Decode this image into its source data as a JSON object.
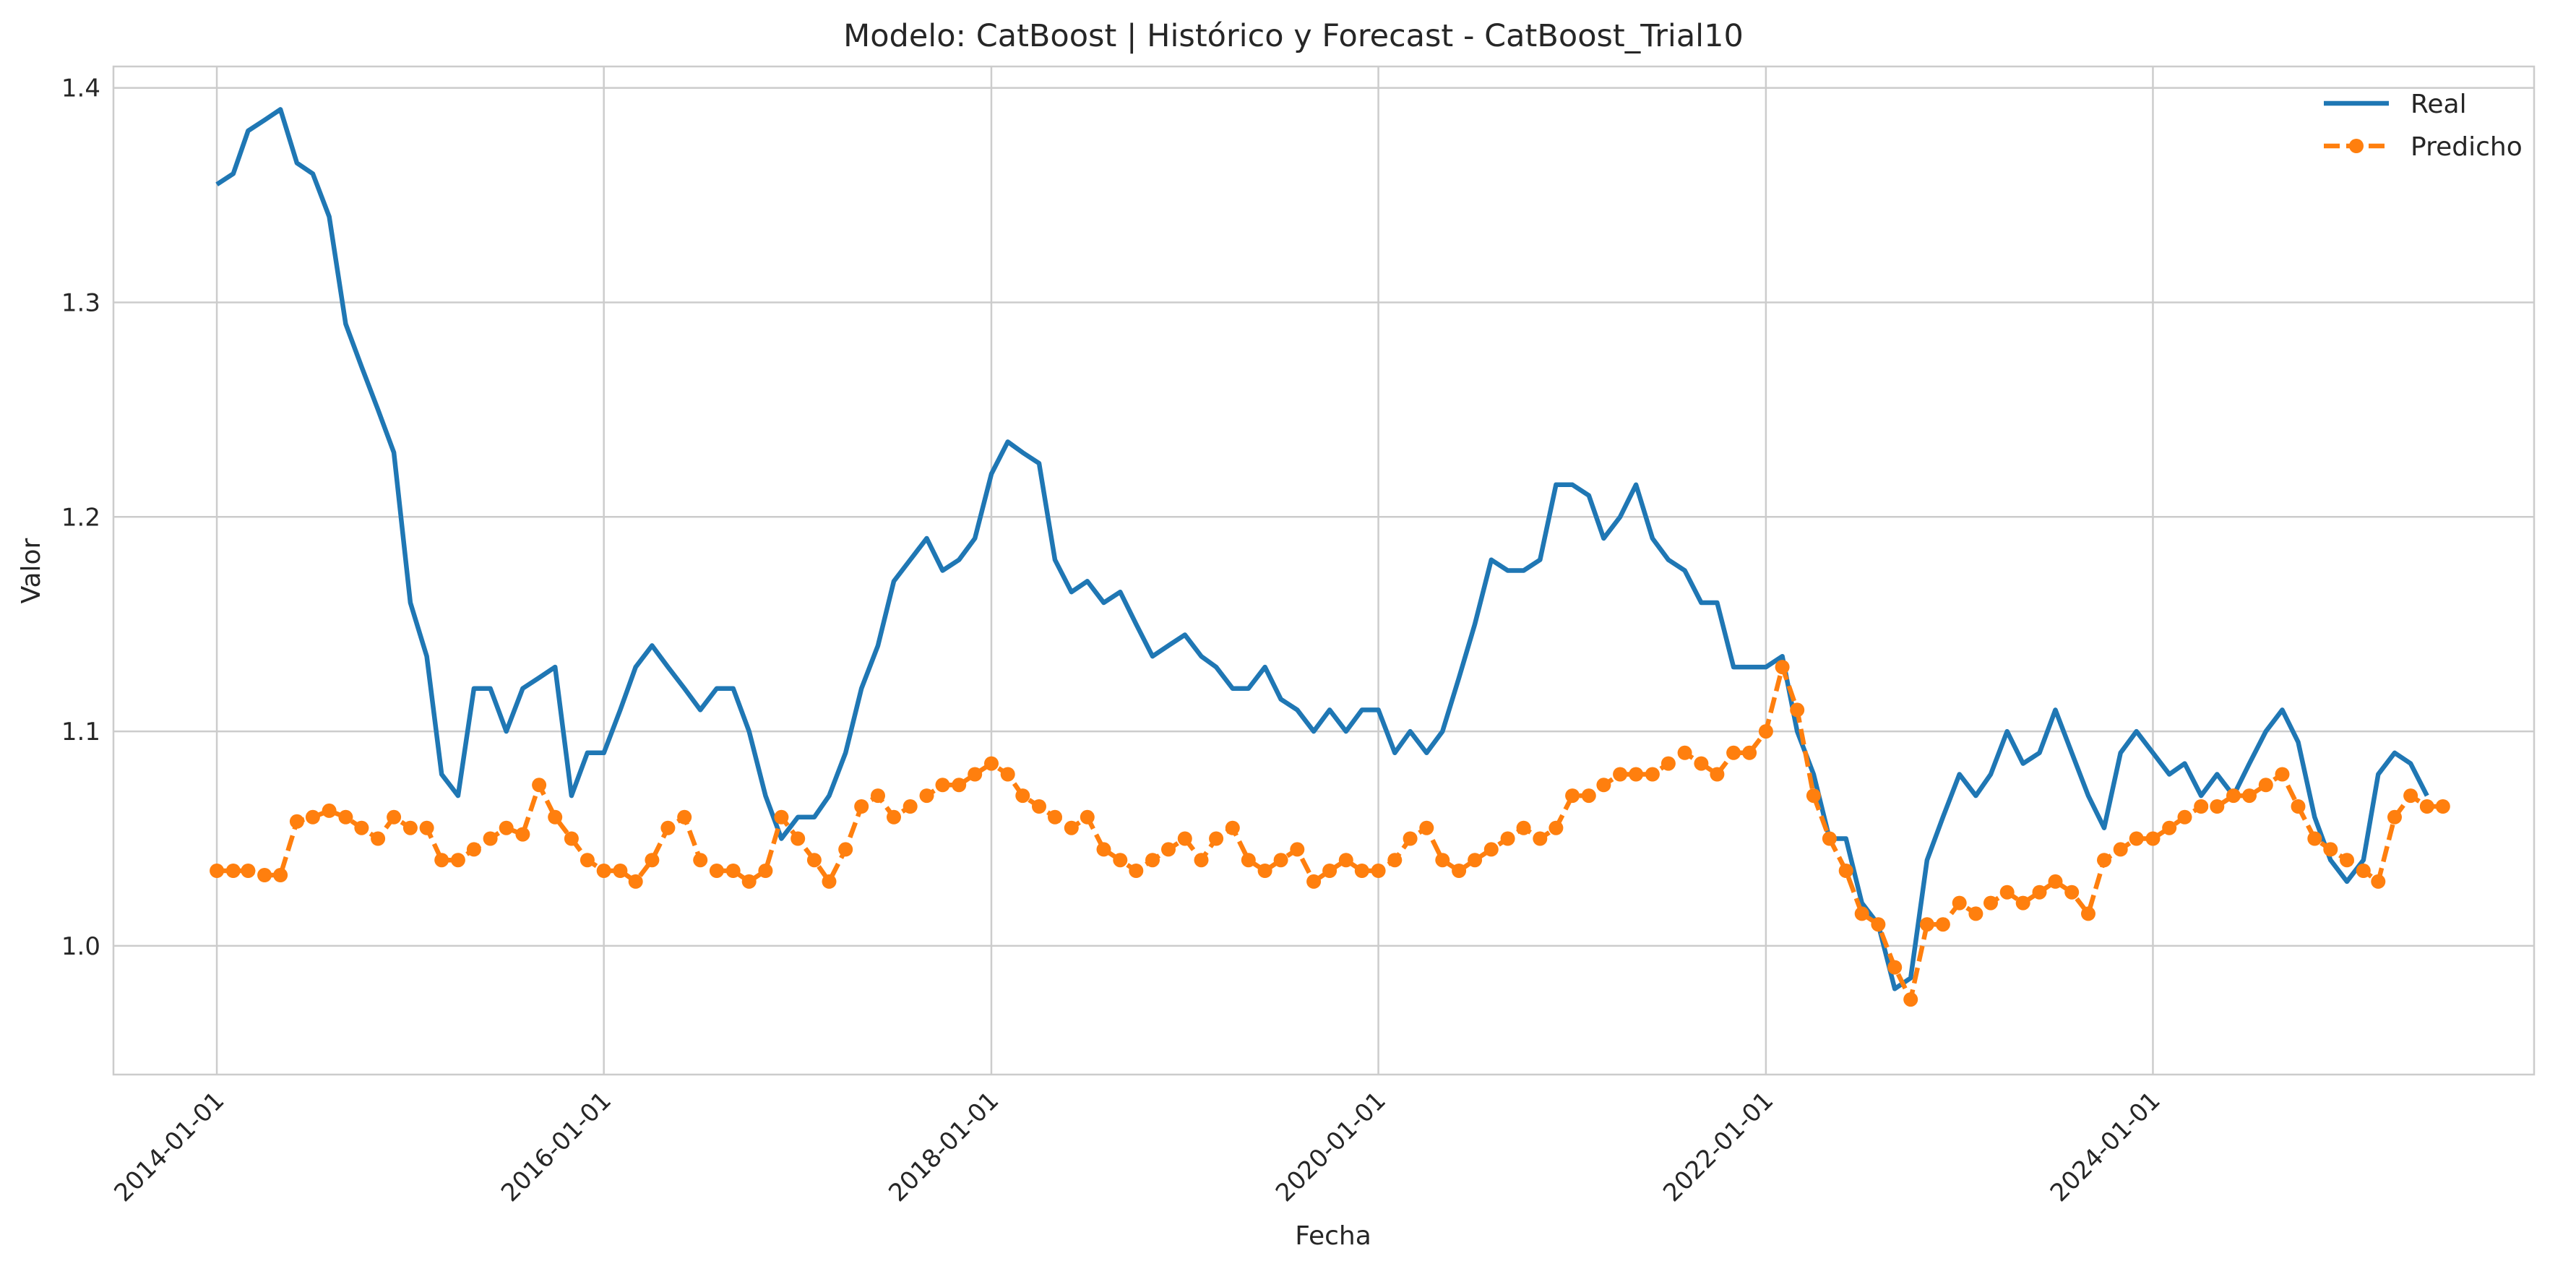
{
  "chart_data": {
    "type": "line",
    "title": "Modelo: CatBoost | Histórico y Forecast - CatBoost_Trial10",
    "xlabel": "Fecha",
    "ylabel": "Valor",
    "x_ticks": [
      "2014-01-01",
      "2016-01-01",
      "2018-01-01",
      "2020-01-01",
      "2022-01-01",
      "2024-01-01"
    ],
    "y_ticks": [
      "1.0",
      "1.1",
      "1.2",
      "1.3",
      "1.4"
    ],
    "xlim": [
      "2013-06-20",
      "2025-12-20"
    ],
    "ylim": [
      0.94,
      1.41
    ],
    "grid": true,
    "legend_position": "top-right",
    "colors": {
      "real": "#1f77b4",
      "predicho": "#ff7f0e",
      "grid": "#cccccc",
      "spine": "#cccccc"
    },
    "series": [
      {
        "name": "Real",
        "style": "solid",
        "points": [
          [
            "2014-01-01",
            1.355
          ],
          [
            "2014-02-01",
            1.36
          ],
          [
            "2014-03-01",
            1.38
          ],
          [
            "2014-04-01",
            1.385
          ],
          [
            "2014-05-01",
            1.39
          ],
          [
            "2014-06-01",
            1.365
          ],
          [
            "2014-07-01",
            1.36
          ],
          [
            "2014-08-01",
            1.34
          ],
          [
            "2014-09-01",
            1.29
          ],
          [
            "2014-10-01",
            1.27
          ],
          [
            "2014-11-01",
            1.25
          ],
          [
            "2014-12-01",
            1.23
          ],
          [
            "2015-01-01",
            1.16
          ],
          [
            "2015-02-01",
            1.135
          ],
          [
            "2015-03-01",
            1.08
          ],
          [
            "2015-04-01",
            1.07
          ],
          [
            "2015-05-01",
            1.12
          ],
          [
            "2015-06-01",
            1.12
          ],
          [
            "2015-07-01",
            1.1
          ],
          [
            "2015-08-01",
            1.12
          ],
          [
            "2015-09-01",
            1.125
          ],
          [
            "2015-10-01",
            1.13
          ],
          [
            "2015-11-01",
            1.07
          ],
          [
            "2015-12-01",
            1.09
          ],
          [
            "2016-01-01",
            1.09
          ],
          [
            "2016-02-01",
            1.11
          ],
          [
            "2016-03-01",
            1.13
          ],
          [
            "2016-04-01",
            1.14
          ],
          [
            "2016-05-01",
            1.13
          ],
          [
            "2016-06-01",
            1.12
          ],
          [
            "2016-07-01",
            1.11
          ],
          [
            "2016-08-01",
            1.12
          ],
          [
            "2016-09-01",
            1.12
          ],
          [
            "2016-10-01",
            1.1
          ],
          [
            "2016-11-01",
            1.07
          ],
          [
            "2016-12-01",
            1.05
          ],
          [
            "2017-01-01",
            1.06
          ],
          [
            "2017-02-01",
            1.06
          ],
          [
            "2017-03-01",
            1.07
          ],
          [
            "2017-04-01",
            1.09
          ],
          [
            "2017-05-01",
            1.12
          ],
          [
            "2017-06-01",
            1.14
          ],
          [
            "2017-07-01",
            1.17
          ],
          [
            "2017-08-01",
            1.18
          ],
          [
            "2017-09-01",
            1.19
          ],
          [
            "2017-10-01",
            1.175
          ],
          [
            "2017-11-01",
            1.18
          ],
          [
            "2017-12-01",
            1.19
          ],
          [
            "2018-01-01",
            1.22
          ],
          [
            "2018-02-01",
            1.235
          ],
          [
            "2018-03-01",
            1.23
          ],
          [
            "2018-04-01",
            1.225
          ],
          [
            "2018-05-01",
            1.18
          ],
          [
            "2018-06-01",
            1.165
          ],
          [
            "2018-07-01",
            1.17
          ],
          [
            "2018-08-01",
            1.16
          ],
          [
            "2018-09-01",
            1.165
          ],
          [
            "2018-10-01",
            1.15
          ],
          [
            "2018-11-01",
            1.135
          ],
          [
            "2018-12-01",
            1.14
          ],
          [
            "2019-01-01",
            1.145
          ],
          [
            "2019-02-01",
            1.135
          ],
          [
            "2019-03-01",
            1.13
          ],
          [
            "2019-04-01",
            1.12
          ],
          [
            "2019-05-01",
            1.12
          ],
          [
            "2019-06-01",
            1.13
          ],
          [
            "2019-07-01",
            1.115
          ],
          [
            "2019-08-01",
            1.11
          ],
          [
            "2019-09-01",
            1.1
          ],
          [
            "2019-10-01",
            1.11
          ],
          [
            "2019-11-01",
            1.1
          ],
          [
            "2019-12-01",
            1.11
          ],
          [
            "2020-01-01",
            1.11
          ],
          [
            "2020-02-01",
            1.09
          ],
          [
            "2020-03-01",
            1.1
          ],
          [
            "2020-04-01",
            1.09
          ],
          [
            "2020-05-01",
            1.1
          ],
          [
            "2020-06-01",
            1.125
          ],
          [
            "2020-07-01",
            1.15
          ],
          [
            "2020-08-01",
            1.18
          ],
          [
            "2020-09-01",
            1.175
          ],
          [
            "2020-10-01",
            1.175
          ],
          [
            "2020-11-01",
            1.18
          ],
          [
            "2020-12-01",
            1.215
          ],
          [
            "2021-01-01",
            1.215
          ],
          [
            "2021-02-01",
            1.21
          ],
          [
            "2021-03-01",
            1.19
          ],
          [
            "2021-04-01",
            1.2
          ],
          [
            "2021-05-01",
            1.215
          ],
          [
            "2021-06-01",
            1.19
          ],
          [
            "2021-07-01",
            1.18
          ],
          [
            "2021-08-01",
            1.175
          ],
          [
            "2021-09-01",
            1.16
          ],
          [
            "2021-10-01",
            1.16
          ],
          [
            "2021-11-01",
            1.13
          ],
          [
            "2021-12-01",
            1.13
          ],
          [
            "2022-01-01",
            1.13
          ],
          [
            "2022-02-01",
            1.135
          ],
          [
            "2022-03-01",
            1.1
          ],
          [
            "2022-04-01",
            1.08
          ],
          [
            "2022-05-01",
            1.05
          ],
          [
            "2022-06-01",
            1.05
          ],
          [
            "2022-07-01",
            1.02
          ],
          [
            "2022-08-01",
            1.01
          ],
          [
            "2022-09-01",
            0.98
          ],
          [
            "2022-10-01",
            0.985
          ],
          [
            "2022-11-01",
            1.04
          ],
          [
            "2022-12-01",
            1.06
          ],
          [
            "2023-01-01",
            1.08
          ],
          [
            "2023-02-01",
            1.07
          ],
          [
            "2023-03-01",
            1.08
          ],
          [
            "2023-04-01",
            1.1
          ],
          [
            "2023-05-01",
            1.085
          ],
          [
            "2023-06-01",
            1.09
          ],
          [
            "2023-07-01",
            1.11
          ],
          [
            "2023-08-01",
            1.09
          ],
          [
            "2023-09-01",
            1.07
          ],
          [
            "2023-10-01",
            1.055
          ],
          [
            "2023-11-01",
            1.09
          ],
          [
            "2023-12-01",
            1.1
          ],
          [
            "2024-01-01",
            1.09
          ],
          [
            "2024-02-01",
            1.08
          ],
          [
            "2024-03-01",
            1.085
          ],
          [
            "2024-04-01",
            1.07
          ],
          [
            "2024-05-01",
            1.08
          ],
          [
            "2024-06-01",
            1.07
          ],
          [
            "2024-07-01",
            1.085
          ],
          [
            "2024-08-01",
            1.1
          ],
          [
            "2024-09-01",
            1.11
          ],
          [
            "2024-10-01",
            1.095
          ],
          [
            "2024-11-01",
            1.06
          ],
          [
            "2024-12-01",
            1.04
          ],
          [
            "2025-01-01",
            1.03
          ],
          [
            "2025-02-01",
            1.04
          ],
          [
            "2025-03-01",
            1.08
          ],
          [
            "2025-04-01",
            1.09
          ],
          [
            "2025-05-01",
            1.085
          ],
          [
            "2025-06-01",
            1.07
          ]
        ]
      },
      {
        "name": "Predicho",
        "style": "dashed-markers",
        "points": [
          [
            "2014-01-01",
            1.035
          ],
          [
            "2014-02-01",
            1.035
          ],
          [
            "2014-03-01",
            1.035
          ],
          [
            "2014-04-01",
            1.033
          ],
          [
            "2014-05-01",
            1.033
          ],
          [
            "2014-06-01",
            1.058
          ],
          [
            "2014-07-01",
            1.06
          ],
          [
            "2014-08-01",
            1.063
          ],
          [
            "2014-09-01",
            1.06
          ],
          [
            "2014-10-01",
            1.055
          ],
          [
            "2014-11-01",
            1.05
          ],
          [
            "2014-12-01",
            1.06
          ],
          [
            "2015-01-01",
            1.055
          ],
          [
            "2015-02-01",
            1.055
          ],
          [
            "2015-03-01",
            1.04
          ],
          [
            "2015-04-01",
            1.04
          ],
          [
            "2015-05-01",
            1.045
          ],
          [
            "2015-06-01",
            1.05
          ],
          [
            "2015-07-01",
            1.055
          ],
          [
            "2015-08-01",
            1.052
          ],
          [
            "2015-09-01",
            1.075
          ],
          [
            "2015-10-01",
            1.06
          ],
          [
            "2015-11-01",
            1.05
          ],
          [
            "2015-12-01",
            1.04
          ],
          [
            "2016-01-01",
            1.035
          ],
          [
            "2016-02-01",
            1.035
          ],
          [
            "2016-03-01",
            1.03
          ],
          [
            "2016-04-01",
            1.04
          ],
          [
            "2016-05-01",
            1.055
          ],
          [
            "2016-06-01",
            1.06
          ],
          [
            "2016-07-01",
            1.04
          ],
          [
            "2016-08-01",
            1.035
          ],
          [
            "2016-09-01",
            1.035
          ],
          [
            "2016-10-01",
            1.03
          ],
          [
            "2016-11-01",
            1.035
          ],
          [
            "2016-12-01",
            1.06
          ],
          [
            "2017-01-01",
            1.05
          ],
          [
            "2017-02-01",
            1.04
          ],
          [
            "2017-03-01",
            1.03
          ],
          [
            "2017-04-01",
            1.045
          ],
          [
            "2017-05-01",
            1.065
          ],
          [
            "2017-06-01",
            1.07
          ],
          [
            "2017-07-01",
            1.06
          ],
          [
            "2017-08-01",
            1.065
          ],
          [
            "2017-09-01",
            1.07
          ],
          [
            "2017-10-01",
            1.075
          ],
          [
            "2017-11-01",
            1.075
          ],
          [
            "2017-12-01",
            1.08
          ],
          [
            "2018-01-01",
            1.085
          ],
          [
            "2018-02-01",
            1.08
          ],
          [
            "2018-03-01",
            1.07
          ],
          [
            "2018-04-01",
            1.065
          ],
          [
            "2018-05-01",
            1.06
          ],
          [
            "2018-06-01",
            1.055
          ],
          [
            "2018-07-01",
            1.06
          ],
          [
            "2018-08-01",
            1.045
          ],
          [
            "2018-09-01",
            1.04
          ],
          [
            "2018-10-01",
            1.035
          ],
          [
            "2018-11-01",
            1.04
          ],
          [
            "2018-12-01",
            1.045
          ],
          [
            "2019-01-01",
            1.05
          ],
          [
            "2019-02-01",
            1.04
          ],
          [
            "2019-03-01",
            1.05
          ],
          [
            "2019-04-01",
            1.055
          ],
          [
            "2019-05-01",
            1.04
          ],
          [
            "2019-06-01",
            1.035
          ],
          [
            "2019-07-01",
            1.04
          ],
          [
            "2019-08-01",
            1.045
          ],
          [
            "2019-09-01",
            1.03
          ],
          [
            "2019-10-01",
            1.035
          ],
          [
            "2019-11-01",
            1.04
          ],
          [
            "2019-12-01",
            1.035
          ],
          [
            "2020-01-01",
            1.035
          ],
          [
            "2020-02-01",
            1.04
          ],
          [
            "2020-03-01",
            1.05
          ],
          [
            "2020-04-01",
            1.055
          ],
          [
            "2020-05-01",
            1.04
          ],
          [
            "2020-06-01",
            1.035
          ],
          [
            "2020-07-01",
            1.04
          ],
          [
            "2020-08-01",
            1.045
          ],
          [
            "2020-09-01",
            1.05
          ],
          [
            "2020-10-01",
            1.055
          ],
          [
            "2020-11-01",
            1.05
          ],
          [
            "2020-12-01",
            1.055
          ],
          [
            "2021-01-01",
            1.07
          ],
          [
            "2021-02-01",
            1.07
          ],
          [
            "2021-03-01",
            1.075
          ],
          [
            "2021-04-01",
            1.08
          ],
          [
            "2021-05-01",
            1.08
          ],
          [
            "2021-06-01",
            1.08
          ],
          [
            "2021-07-01",
            1.085
          ],
          [
            "2021-08-01",
            1.09
          ],
          [
            "2021-09-01",
            1.085
          ],
          [
            "2021-10-01",
            1.08
          ],
          [
            "2021-11-01",
            1.09
          ],
          [
            "2021-12-01",
            1.09
          ],
          [
            "2022-01-01",
            1.1
          ],
          [
            "2022-02-01",
            1.13
          ],
          [
            "2022-03-01",
            1.11
          ],
          [
            "2022-04-01",
            1.07
          ],
          [
            "2022-05-01",
            1.05
          ],
          [
            "2022-06-01",
            1.035
          ],
          [
            "2022-07-01",
            1.015
          ],
          [
            "2022-08-01",
            1.01
          ],
          [
            "2022-09-01",
            0.99
          ],
          [
            "2022-10-01",
            0.975
          ],
          [
            "2022-11-01",
            1.01
          ],
          [
            "2022-12-01",
            1.01
          ],
          [
            "2023-01-01",
            1.02
          ],
          [
            "2023-02-01",
            1.015
          ],
          [
            "2023-03-01",
            1.02
          ],
          [
            "2023-04-01",
            1.025
          ],
          [
            "2023-05-01",
            1.02
          ],
          [
            "2023-06-01",
            1.025
          ],
          [
            "2023-07-01",
            1.03
          ],
          [
            "2023-08-01",
            1.025
          ],
          [
            "2023-09-01",
            1.015
          ],
          [
            "2023-10-01",
            1.04
          ],
          [
            "2023-11-01",
            1.045
          ],
          [
            "2023-12-01",
            1.05
          ],
          [
            "2024-01-01",
            1.05
          ],
          [
            "2024-02-01",
            1.055
          ],
          [
            "2024-03-01",
            1.06
          ],
          [
            "2024-04-01",
            1.065
          ],
          [
            "2024-05-01",
            1.065
          ],
          [
            "2024-06-01",
            1.07
          ],
          [
            "2024-07-01",
            1.07
          ],
          [
            "2024-08-01",
            1.075
          ],
          [
            "2024-09-01",
            1.08
          ],
          [
            "2024-10-01",
            1.065
          ],
          [
            "2024-11-01",
            1.05
          ],
          [
            "2024-12-01",
            1.045
          ],
          [
            "2025-01-01",
            1.04
          ],
          [
            "2025-02-01",
            1.035
          ],
          [
            "2025-03-01",
            1.03
          ],
          [
            "2025-04-01",
            1.06
          ],
          [
            "2025-05-01",
            1.07
          ],
          [
            "2025-06-01",
            1.065
          ],
          [
            "2025-07-01",
            1.065
          ]
        ]
      }
    ]
  }
}
